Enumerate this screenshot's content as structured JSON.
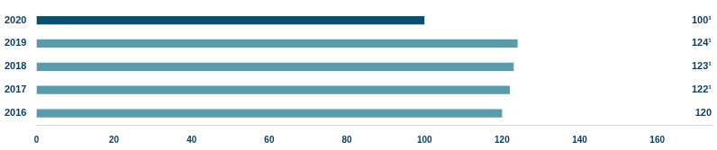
{
  "chart_data": {
    "type": "bar",
    "orientation": "horizontal",
    "categories": [
      "2020",
      "2019",
      "2018",
      "2017",
      "2016"
    ],
    "values": [
      100,
      124,
      123,
      122,
      120
    ],
    "value_labels": [
      "100¹",
      "124¹",
      "123¹",
      "122¹",
      "120"
    ],
    "data_labels": true,
    "colors": [
      "#0b4f6c",
      "#5b9ba9",
      "#5b9ba9",
      "#5b9ba9",
      "#5b9ba9"
    ],
    "xlim": [
      0,
      174
    ],
    "xticks": [
      0,
      20,
      40,
      60,
      80,
      100,
      120,
      140,
      160
    ],
    "grid": false
  }
}
